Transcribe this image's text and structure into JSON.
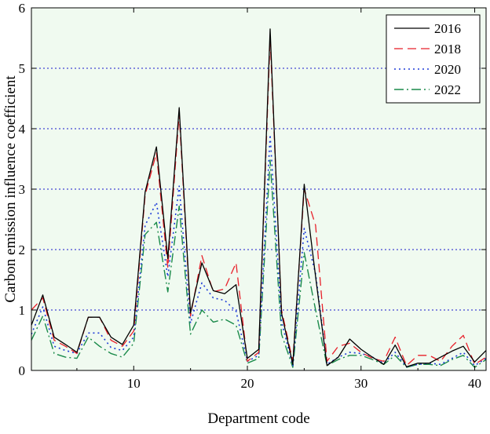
{
  "chart_data": {
    "type": "line",
    "xlabel": "Department code",
    "ylabel": "Carbon emission influence coefficient",
    "xlim": [
      1,
      41
    ],
    "ylim": [
      0,
      6
    ],
    "x_ticks": [
      "10",
      "20",
      "30",
      "40"
    ],
    "y_ticks": [
      "0",
      "1",
      "2",
      "3",
      "4",
      "5",
      "6"
    ],
    "grid": "horizontal dotted at y = 1–5",
    "legend_position": "top-right",
    "colors": {
      "background": "#f0faf0",
      "grid": "#1a1acc",
      "s2016": "#000000",
      "s2018": "#e8202a",
      "s2020": "#1e3cd8",
      "s2022": "#1a8a4a"
    },
    "x": [
      1,
      2,
      3,
      4,
      5,
      6,
      7,
      8,
      9,
      10,
      11,
      12,
      13,
      14,
      15,
      16,
      17,
      18,
      19,
      20,
      21,
      22,
      23,
      24,
      25,
      26,
      27,
      28,
      29,
      30,
      31,
      32,
      33,
      34,
      35,
      36,
      37,
      38,
      39,
      40,
      41
    ],
    "series": [
      {
        "name": "2016",
        "values": [
          0.75,
          1.25,
          0.55,
          0.43,
          0.3,
          0.88,
          0.88,
          0.55,
          0.43,
          0.75,
          2.95,
          3.7,
          1.85,
          4.35,
          0.95,
          1.78,
          1.32,
          1.27,
          1.42,
          0.2,
          0.35,
          5.65,
          0.95,
          0.1,
          3.08,
          1.55,
          0.08,
          0.22,
          0.52,
          0.35,
          0.22,
          0.1,
          0.42,
          0.06,
          0.12,
          0.12,
          0.22,
          0.32,
          0.4,
          0.14,
          0.33
        ]
      },
      {
        "name": "2018",
        "values": [
          1.0,
          1.2,
          0.5,
          0.4,
          0.28,
          0.88,
          0.88,
          0.5,
          0.4,
          0.65,
          2.9,
          3.6,
          1.7,
          4.25,
          0.9,
          1.9,
          1.3,
          1.35,
          1.78,
          0.15,
          0.3,
          5.5,
          1.0,
          0.15,
          3.0,
          2.4,
          0.15,
          0.4,
          0.45,
          0.3,
          0.2,
          0.15,
          0.55,
          0.08,
          0.25,
          0.25,
          0.15,
          0.4,
          0.58,
          0.1,
          0.22
        ]
      },
      {
        "name": "2020",
        "values": [
          0.6,
          1.05,
          0.4,
          0.33,
          0.28,
          0.62,
          0.62,
          0.38,
          0.33,
          0.55,
          2.4,
          2.78,
          1.55,
          3.05,
          0.78,
          1.45,
          1.2,
          1.16,
          0.98,
          0.15,
          0.25,
          3.9,
          0.8,
          0.08,
          2.35,
          1.6,
          0.1,
          0.22,
          0.3,
          0.28,
          0.22,
          0.12,
          0.3,
          0.06,
          0.1,
          0.12,
          0.1,
          0.2,
          0.3,
          0.08,
          0.2
        ]
      },
      {
        "name": "2022",
        "values": [
          0.5,
          0.9,
          0.28,
          0.22,
          0.2,
          0.55,
          0.4,
          0.28,
          0.22,
          0.45,
          2.25,
          2.45,
          1.3,
          2.72,
          0.6,
          1.0,
          0.8,
          0.85,
          0.75,
          0.12,
          0.2,
          3.48,
          0.6,
          0.05,
          1.95,
          1.0,
          0.08,
          0.18,
          0.25,
          0.25,
          0.18,
          0.1,
          0.25,
          0.05,
          0.1,
          0.1,
          0.08,
          0.18,
          0.25,
          0.05,
          0.18
        ]
      }
    ]
  }
}
